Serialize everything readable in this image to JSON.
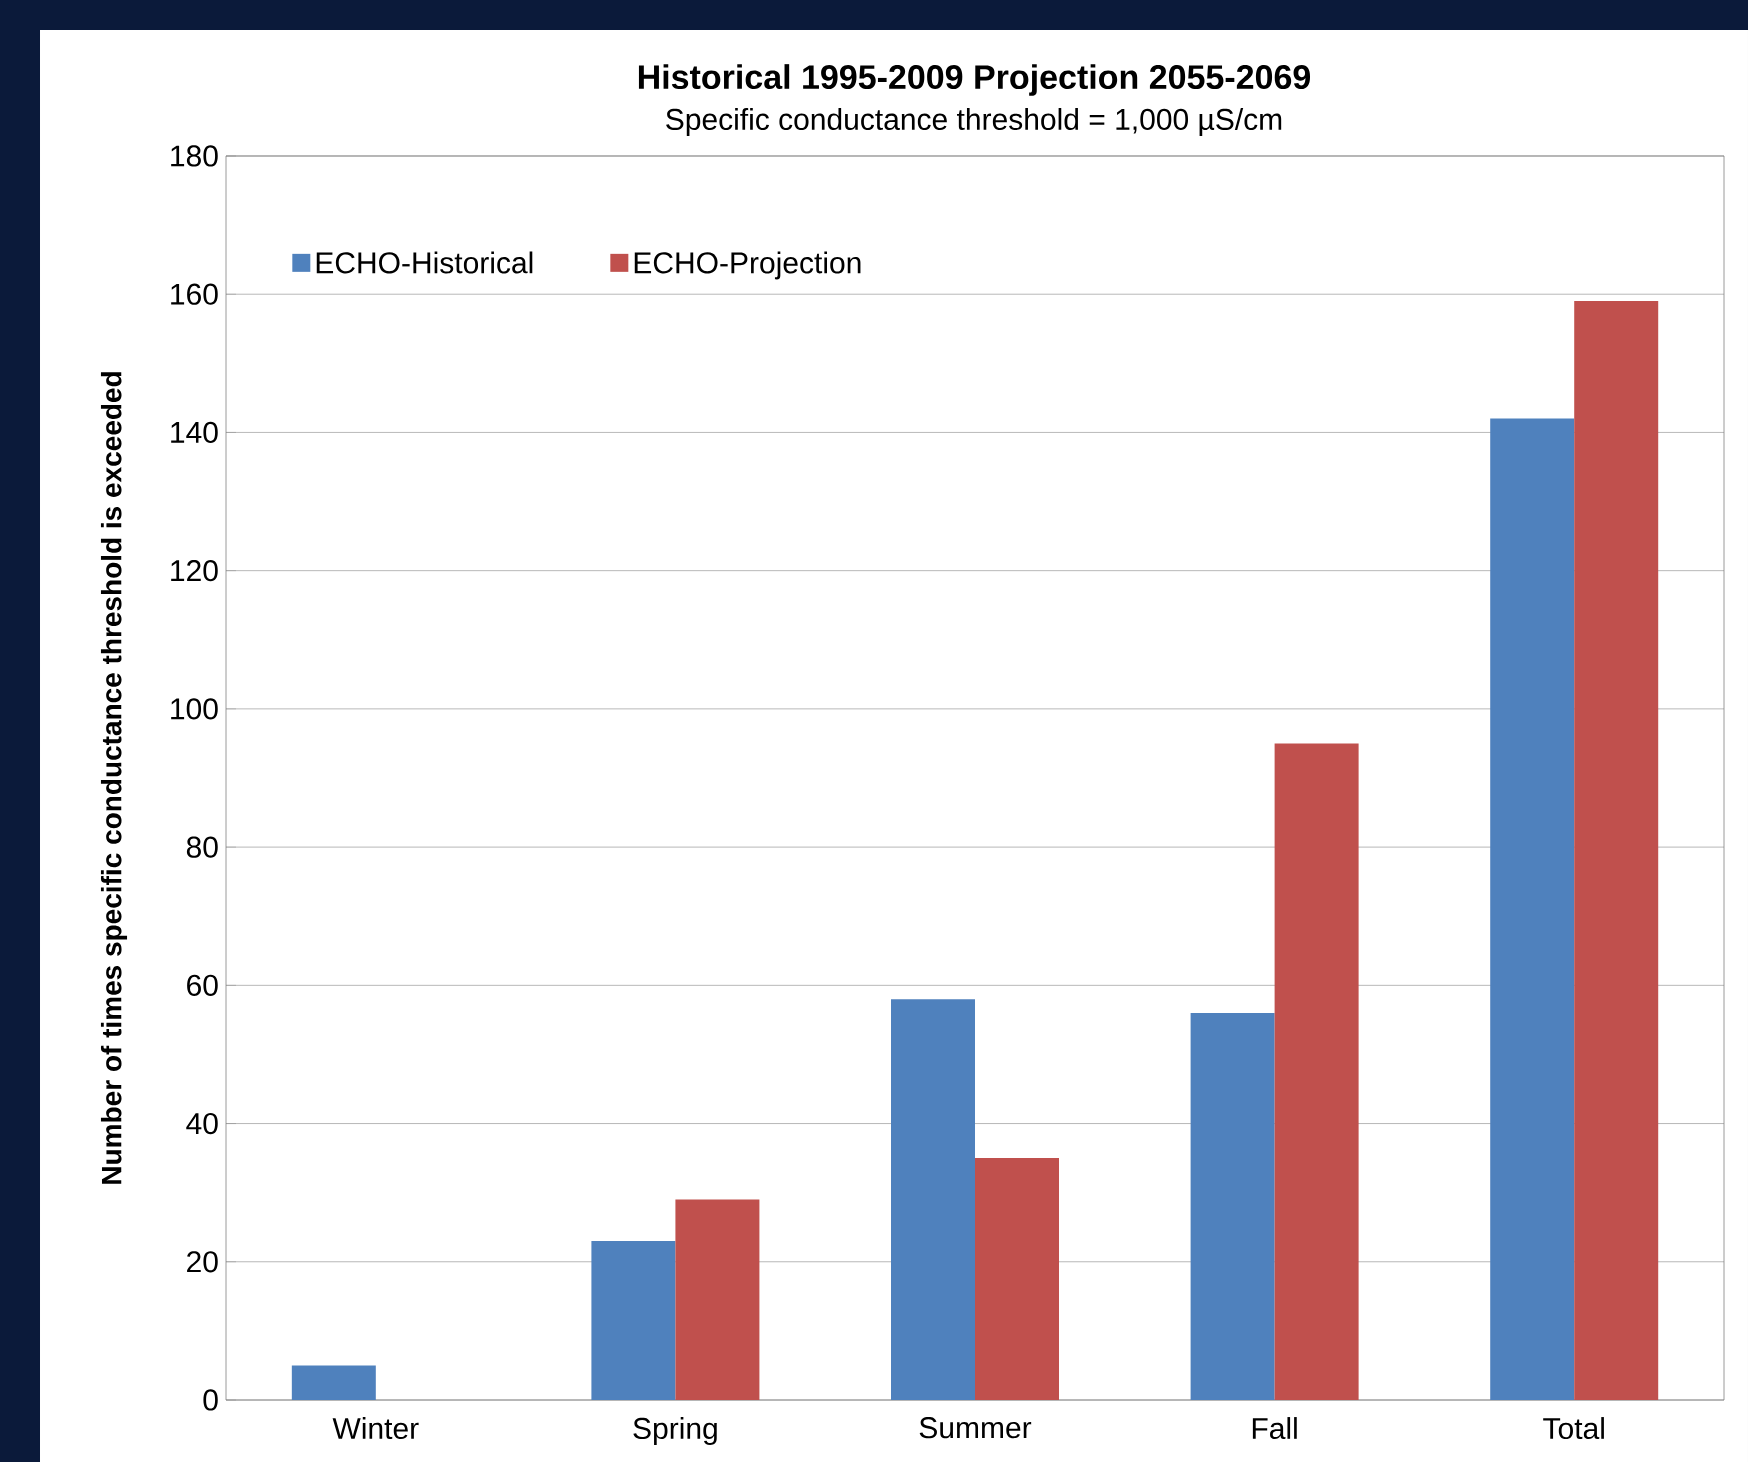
{
  "chart_data": {
    "type": "bar",
    "title": "Historical 1995-2009  Projection 2055-2069",
    "subtitle": "Specific conductance threshold = 1,000 µS/cm",
    "ylabel": "Number of times specific conductance threshold is exceeded",
    "categories": [
      "Winter",
      "Spring",
      "Summer",
      "Fall",
      "Total"
    ],
    "series": [
      {
        "name": "ECHO-Historical",
        "color": "#4f81bd",
        "values": [
          5,
          23,
          58,
          56,
          142
        ]
      },
      {
        "name": "ECHO-Projection",
        "color": "#c0504d",
        "values": [
          0,
          29,
          35,
          95,
          159
        ]
      }
    ],
    "ylim": [
      0,
      180
    ],
    "yticks": [
      0,
      20,
      40,
      60,
      80,
      100,
      120,
      140,
      160,
      180
    ],
    "grid": "y",
    "legend": "top left"
  }
}
